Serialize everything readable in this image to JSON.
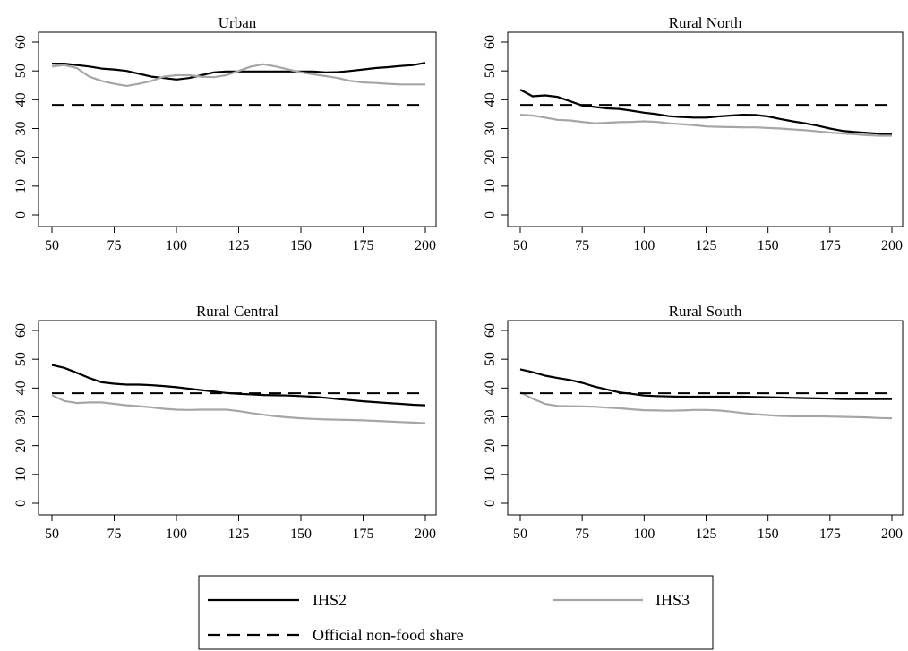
{
  "chart_data": [
    {
      "type": "line",
      "title": "Urban",
      "xlabel": "",
      "ylabel": "",
      "xlim": [
        50,
        200
      ],
      "ylim": [
        0,
        60
      ],
      "xticks": [
        50,
        75,
        100,
        125,
        150,
        175,
        200
      ],
      "yticks": [
        0,
        10,
        20,
        30,
        40,
        50,
        60
      ],
      "series": [
        {
          "name": "IHS2",
          "color": "#000000",
          "style": "solid",
          "x": [
            50,
            55,
            60,
            65,
            70,
            75,
            80,
            85,
            90,
            95,
            100,
            105,
            110,
            115,
            120,
            125,
            130,
            135,
            140,
            145,
            150,
            155,
            160,
            165,
            170,
            175,
            180,
            185,
            190,
            195,
            200
          ],
          "y": [
            52.5,
            52.5,
            52,
            51.5,
            50.8,
            50.5,
            50,
            49,
            48,
            47.5,
            47,
            47.5,
            48.5,
            49.5,
            49.8,
            49.8,
            49.8,
            49.8,
            49.8,
            49.8,
            49.8,
            49.8,
            49.5,
            49.6,
            50,
            50.5,
            51,
            51.3,
            51.7,
            52,
            52.8
          ]
        },
        {
          "name": "IHS3",
          "color": "#a6a6a6",
          "style": "solid",
          "x": [
            50,
            55,
            60,
            65,
            70,
            75,
            80,
            85,
            90,
            95,
            100,
            105,
            110,
            115,
            120,
            125,
            130,
            135,
            140,
            145,
            150,
            155,
            160,
            165,
            170,
            175,
            180,
            185,
            190,
            195,
            200
          ],
          "y": [
            51.5,
            52,
            51,
            48,
            46.5,
            45.5,
            44.8,
            45.5,
            46.5,
            48,
            48.5,
            48.5,
            48,
            47.8,
            48.5,
            50,
            51.5,
            52.3,
            51.5,
            50.5,
            49.5,
            48.8,
            48.2,
            47.5,
            46.5,
            46,
            45.8,
            45.5,
            45.3,
            45.3,
            45.3
          ]
        },
        {
          "name": "Official non-food share",
          "color": "#000000",
          "style": "dashed",
          "x": [
            50,
            200
          ],
          "y": [
            38.2,
            38.2
          ]
        }
      ]
    },
    {
      "type": "line",
      "title": "Rural North",
      "xlabel": "",
      "ylabel": "",
      "xlim": [
        50,
        200
      ],
      "ylim": [
        0,
        60
      ],
      "xticks": [
        50,
        75,
        100,
        125,
        150,
        175,
        200
      ],
      "yticks": [
        0,
        10,
        20,
        30,
        40,
        50,
        60
      ],
      "series": [
        {
          "name": "IHS2",
          "color": "#000000",
          "style": "solid",
          "x": [
            50,
            55,
            60,
            65,
            70,
            75,
            80,
            85,
            90,
            95,
            100,
            105,
            110,
            115,
            120,
            125,
            130,
            135,
            140,
            145,
            150,
            155,
            160,
            165,
            170,
            175,
            180,
            185,
            190,
            195,
            200
          ],
          "y": [
            43.5,
            41.2,
            41.5,
            41,
            39.5,
            38,
            37.5,
            37,
            36.8,
            36.2,
            35.5,
            35,
            34.3,
            34,
            33.8,
            33.8,
            34.2,
            34.5,
            34.8,
            34.7,
            34.2,
            33.3,
            32.5,
            31.8,
            31,
            30,
            29.2,
            28.8,
            28.5,
            28.2,
            28
          ]
        },
        {
          "name": "IHS3",
          "color": "#a6a6a6",
          "style": "solid",
          "x": [
            50,
            55,
            60,
            65,
            70,
            75,
            80,
            85,
            90,
            95,
            100,
            105,
            110,
            115,
            120,
            125,
            130,
            135,
            140,
            145,
            150,
            155,
            160,
            165,
            170,
            175,
            180,
            185,
            190,
            195,
            200
          ],
          "y": [
            34.8,
            34.5,
            33.8,
            33,
            32.8,
            32.3,
            31.8,
            32,
            32.2,
            32.3,
            32.5,
            32.3,
            31.8,
            31.5,
            31.2,
            30.7,
            30.6,
            30.5,
            30.4,
            30.4,
            30.2,
            30,
            29.7,
            29.4,
            29,
            28.6,
            28.3,
            28,
            27.7,
            27.5,
            27.5
          ]
        },
        {
          "name": "Official non-food share",
          "color": "#000000",
          "style": "dashed",
          "x": [
            50,
            200
          ],
          "y": [
            38.2,
            38.2
          ]
        }
      ]
    },
    {
      "type": "line",
      "title": "Rural Central",
      "xlabel": "",
      "ylabel": "",
      "xlim": [
        50,
        200
      ],
      "ylim": [
        0,
        60
      ],
      "xticks": [
        50,
        75,
        100,
        125,
        150,
        175,
        200
      ],
      "yticks": [
        0,
        10,
        20,
        30,
        40,
        50,
        60
      ],
      "series": [
        {
          "name": "IHS2",
          "color": "#000000",
          "style": "solid",
          "x": [
            50,
            55,
            60,
            65,
            70,
            75,
            80,
            85,
            90,
            95,
            100,
            105,
            110,
            115,
            120,
            125,
            130,
            135,
            140,
            145,
            150,
            155,
            160,
            165,
            170,
            175,
            180,
            185,
            190,
            195,
            200
          ],
          "y": [
            48,
            47,
            45.3,
            43.5,
            42,
            41.5,
            41.2,
            41.2,
            41,
            40.7,
            40.3,
            39.8,
            39.3,
            38.8,
            38.3,
            38,
            37.8,
            37.6,
            37.5,
            37.4,
            37.2,
            37,
            36.6,
            36.2,
            35.8,
            35.4,
            35.1,
            34.8,
            34.5,
            34.2,
            34
          ]
        },
        {
          "name": "IHS3",
          "color": "#a6a6a6",
          "style": "solid",
          "x": [
            50,
            55,
            60,
            65,
            70,
            75,
            80,
            85,
            90,
            95,
            100,
            105,
            110,
            115,
            120,
            125,
            130,
            135,
            140,
            145,
            150,
            155,
            160,
            165,
            170,
            175,
            180,
            185,
            190,
            195,
            200
          ],
          "y": [
            37.5,
            35.5,
            34.8,
            35,
            35,
            34.5,
            34,
            33.7,
            33.3,
            32.8,
            32.5,
            32.4,
            32.5,
            32.5,
            32.5,
            32,
            31.3,
            30.7,
            30.2,
            29.8,
            29.5,
            29.3,
            29.1,
            29,
            28.9,
            28.8,
            28.6,
            28.4,
            28.2,
            28,
            27.8
          ]
        },
        {
          "name": "Official non-food share",
          "color": "#000000",
          "style": "dashed",
          "x": [
            50,
            200
          ],
          "y": [
            38.2,
            38.2
          ]
        }
      ]
    },
    {
      "type": "line",
      "title": "Rural South",
      "xlabel": "",
      "ylabel": "",
      "xlim": [
        50,
        200
      ],
      "ylim": [
        0,
        60
      ],
      "xticks": [
        50,
        75,
        100,
        125,
        150,
        175,
        200
      ],
      "yticks": [
        0,
        10,
        20,
        30,
        40,
        50,
        60
      ],
      "series": [
        {
          "name": "IHS2",
          "color": "#000000",
          "style": "solid",
          "x": [
            50,
            55,
            60,
            65,
            70,
            75,
            80,
            85,
            90,
            95,
            100,
            105,
            110,
            115,
            120,
            125,
            130,
            135,
            140,
            145,
            150,
            155,
            160,
            165,
            170,
            175,
            180,
            185,
            190,
            195,
            200
          ],
          "y": [
            46.5,
            45.5,
            44.3,
            43.5,
            42.8,
            41.8,
            40.5,
            39.5,
            38.5,
            38,
            37.4,
            37.2,
            37.1,
            37,
            37,
            37,
            37,
            37,
            37,
            36.9,
            36.8,
            36.7,
            36.6,
            36.5,
            36.4,
            36.3,
            36.2,
            36.2,
            36.2,
            36.2,
            36.2
          ]
        },
        {
          "name": "IHS3",
          "color": "#a6a6a6",
          "style": "solid",
          "x": [
            50,
            55,
            60,
            65,
            70,
            75,
            80,
            85,
            90,
            95,
            100,
            105,
            110,
            115,
            120,
            125,
            130,
            135,
            140,
            145,
            150,
            155,
            160,
            165,
            170,
            175,
            180,
            185,
            190,
            195,
            200
          ],
          "y": [
            38.5,
            36.3,
            34.5,
            33.8,
            33.7,
            33.6,
            33.5,
            33.2,
            33,
            32.6,
            32.3,
            32.2,
            32.1,
            32.2,
            32.4,
            32.4,
            32.2,
            31.8,
            31.3,
            30.9,
            30.6,
            30.3,
            30.2,
            30.2,
            30.2,
            30.1,
            30,
            29.9,
            29.8,
            29.6,
            29.5
          ]
        },
        {
          "name": "Official non-food share",
          "color": "#000000",
          "style": "dashed",
          "x": [
            50,
            200
          ],
          "y": [
            38.2,
            38.2
          ]
        }
      ]
    }
  ],
  "legend": {
    "placement": "bottom-center",
    "entries": [
      {
        "label": "IHS2",
        "color": "#000000",
        "style": "solid"
      },
      {
        "label": "IHS3",
        "color": "#a6a6a6",
        "style": "solid"
      },
      {
        "label": "Official non-food share",
        "color": "#000000",
        "style": "dashed"
      }
    ]
  }
}
